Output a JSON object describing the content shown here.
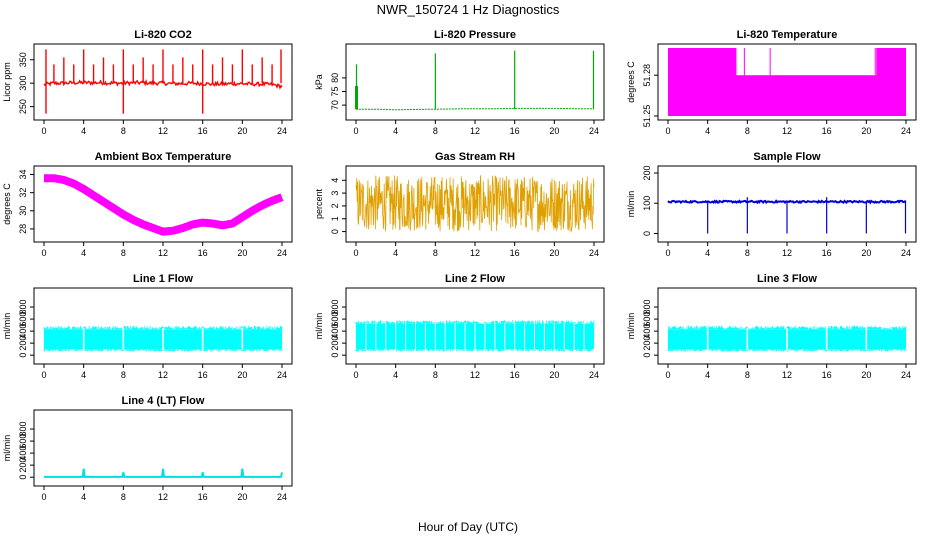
{
  "figure": {
    "title": "NWR_150724  1 Hz Diagnostics",
    "xlabel": "Hour of Day (UTC)"
  },
  "chart_data": [
    {
      "type": "line",
      "title": "Li-820 CO2",
      "ylabel": "Licor ppm",
      "color": "#ff0000",
      "xlim": [
        0,
        24
      ],
      "ylim": [
        230,
        375
      ],
      "xticks": [
        "0",
        "4",
        "8",
        "12",
        "16",
        "20",
        "24"
      ],
      "yticks": [
        "250",
        "300",
        "350"
      ],
      "series": [
        {
          "x": [
            0,
            1,
            2,
            3,
            4,
            5,
            6,
            7,
            8,
            9,
            10,
            11,
            12,
            13,
            14,
            15,
            16,
            17,
            18,
            19,
            20,
            21,
            22,
            23,
            24
          ],
          "values": [
            297,
            300,
            300,
            301,
            301,
            301,
            301,
            300,
            300,
            301,
            301,
            300,
            300,
            299,
            299,
            300,
            299,
            298,
            298,
            299,
            299,
            298,
            298,
            297,
            293
          ]
        }
      ]
    },
    {
      "type": "line",
      "title": "Li-820 Pressure",
      "ylabel": "kPa",
      "color": "#00aa00",
      "xlim": [
        0,
        24
      ],
      "ylim": [
        66,
        91
      ],
      "xticks": [
        "0",
        "4",
        "8",
        "12",
        "16",
        "20",
        "24"
      ],
      "yticks": [
        "70",
        "75",
        "80"
      ],
      "series": [
        {
          "x": [
            0,
            2,
            4,
            6,
            8,
            10,
            12,
            14,
            16,
            18,
            20,
            22,
            24
          ],
          "values": [
            68.5,
            68.5,
            68.3,
            68.4,
            68.5,
            68.6,
            68.7,
            68.7,
            68.8,
            68.8,
            68.8,
            68.7,
            68.7
          ]
        }
      ]
    },
    {
      "type": "area",
      "title": "Li-820 Temperature",
      "ylabel": "degrees C",
      "color": "#ff00ff",
      "xlim": [
        0,
        24
      ],
      "ylim": [
        51.25,
        51.3
      ],
      "xticks": [
        "0",
        "4",
        "8",
        "12",
        "16",
        "20",
        "24"
      ],
      "yticks": [
        "51.25",
        "51.28"
      ],
      "series": [
        {
          "x": [
            0,
            6.8,
            7.0,
            21.0,
            21.2,
            24
          ],
          "values": [
            51.3,
            51.3,
            51.28,
            51.28,
            51.3,
            51.3
          ]
        }
      ]
    },
    {
      "type": "line",
      "title": "Ambient Box Temperature",
      "ylabel": "degrees C",
      "color": "#ff00ff",
      "xlim": [
        0,
        24
      ],
      "ylim": [
        27,
        34.5
      ],
      "xticks": [
        "0",
        "4",
        "8",
        "12",
        "16",
        "20",
        "24"
      ],
      "yticks": [
        "28",
        "30",
        "32",
        "34"
      ],
      "series": [
        {
          "x": [
            0,
            1,
            2,
            3,
            4,
            5,
            6,
            7,
            8,
            9,
            10,
            11,
            12,
            13,
            14,
            15,
            16,
            17,
            18,
            19,
            20,
            21,
            22,
            23,
            24
          ],
          "values": [
            33.6,
            33.6,
            33.4,
            33.0,
            32.4,
            31.7,
            31.0,
            30.3,
            29.6,
            29.0,
            28.5,
            28.1,
            27.7,
            27.8,
            28.1,
            28.5,
            28.7,
            28.6,
            28.4,
            28.6,
            29.3,
            30.0,
            30.6,
            31.1,
            31.5
          ]
        }
      ]
    },
    {
      "type": "line",
      "title": "Gas Stream RH",
      "ylabel": "percent",
      "color": "#e0a000",
      "xlim": [
        0,
        24
      ],
      "ylim": [
        -0.5,
        4.8
      ],
      "xticks": [
        "0",
        "4",
        "8",
        "12",
        "16",
        "20",
        "24"
      ],
      "yticks": [
        "0",
        "1",
        "2",
        "3",
        "4"
      ],
      "series": [
        {
          "x": [
            0,
            4,
            8,
            12,
            16,
            20,
            24
          ],
          "values": [
            2.2,
            2.2,
            2.2,
            2.2,
            2.2,
            2.2,
            2.1
          ]
        }
      ]
    },
    {
      "type": "line",
      "title": "Sample Flow",
      "ylabel": "ml/min",
      "color": "#0000dd",
      "xlim": [
        0,
        24
      ],
      "ylim": [
        -15,
        210
      ],
      "xticks": [
        "0",
        "4",
        "8",
        "12",
        "16",
        "20",
        "24"
      ],
      "yticks": [
        "0",
        "100",
        "200"
      ],
      "series": [
        {
          "x": [
            0,
            4,
            8,
            12,
            16,
            20,
            24
          ],
          "values": [
            105,
            105,
            105,
            105,
            105,
            105,
            105
          ]
        }
      ]
    },
    {
      "type": "area",
      "title": "Line 1 Flow",
      "ylabel": "ml/min",
      "color": "#00ffff",
      "xlim": [
        0,
        24
      ],
      "ylim": [
        -80,
        1050
      ],
      "xticks": [
        "0",
        "4",
        "8",
        "12",
        "16",
        "20",
        "24"
      ],
      "yticks": [
        "0",
        "200",
        "400",
        "600",
        "800"
      ],
      "series": [
        {
          "x": [
            0,
            24
          ],
          "values": [
            430,
            430
          ]
        }
      ]
    },
    {
      "type": "area",
      "title": "Line 2 Flow",
      "ylabel": "ml/min",
      "color": "#00ffff",
      "xlim": [
        0,
        24
      ],
      "ylim": [
        -80,
        1050
      ],
      "xticks": [
        "0",
        "4",
        "8",
        "12",
        "16",
        "20",
        "24"
      ],
      "yticks": [
        "0",
        "200",
        "400",
        "600",
        "800"
      ],
      "series": [
        {
          "x": [
            0,
            24
          ],
          "values": [
            520,
            520
          ]
        }
      ]
    },
    {
      "type": "area",
      "title": "Line 3 Flow",
      "ylabel": "ml/min",
      "color": "#00ffff",
      "xlim": [
        0,
        24
      ],
      "ylim": [
        -80,
        1050
      ],
      "xticks": [
        "0",
        "4",
        "8",
        "12",
        "16",
        "20",
        "24"
      ],
      "yticks": [
        "0",
        "200",
        "400",
        "600",
        "800"
      ],
      "series": [
        {
          "x": [
            0,
            24
          ],
          "values": [
            430,
            430
          ]
        }
      ]
    },
    {
      "type": "line",
      "title": "Line 4 (LT) Flow",
      "ylabel": "ml/min",
      "color": "#00e0e0",
      "xlim": [
        0,
        24
      ],
      "ylim": [
        -80,
        1050
      ],
      "xticks": [
        "0",
        "4",
        "8",
        "12",
        "16",
        "20",
        "24"
      ],
      "yticks": [
        "0",
        "200",
        "400",
        "600",
        "800"
      ],
      "series": [
        {
          "x": [
            0,
            3.9,
            4.0,
            4.1,
            7.9,
            8.0,
            8.1,
            11.9,
            12.0,
            12.1,
            15.9,
            16.0,
            16.1,
            19.9,
            20.0,
            20.1,
            23.9,
            24.0
          ],
          "values": [
            5,
            5,
            140,
            5,
            5,
            80,
            5,
            5,
            140,
            5,
            5,
            80,
            5,
            5,
            140,
            5,
            5,
            80
          ]
        }
      ]
    }
  ]
}
